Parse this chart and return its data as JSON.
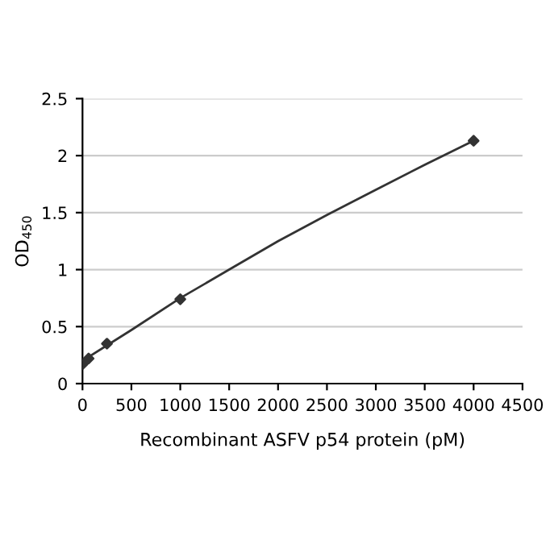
{
  "chart_data": {
    "type": "scatter",
    "xlabel": "Recombinant ASFV p54 protein (pM)",
    "ylabel": "OD$_{450}$",
    "series": [
      {
        "color": "#333333",
        "marker": "diamond",
        "x": [
          0,
          62.5,
          250,
          1000,
          4000
        ],
        "values": [
          0.17,
          0.22,
          0.35,
          0.74,
          2.13
        ]
      },
      {
        "type": "line",
        "color": "#333333",
        "marker": "none",
        "x": [
          0,
          500,
          1000,
          1500,
          2000,
          2500,
          3000,
          3500,
          4000
        ],
        "values": [
          0.2,
          0.47,
          0.75,
          1.0,
          1.25,
          1.48,
          1.7,
          1.92,
          2.13
        ]
      }
    ],
    "xlim": [
      0,
      4500
    ],
    "xticks": [
      0,
      500,
      1000,
      1500,
      2000,
      2500,
      3000,
      3500,
      4000,
      4500
    ],
    "ylim": [
      0,
      2.5
    ],
    "yticks": [
      0,
      0.5,
      1,
      1.5,
      2,
      2.5
    ],
    "grid": "y",
    "legend": false
  }
}
